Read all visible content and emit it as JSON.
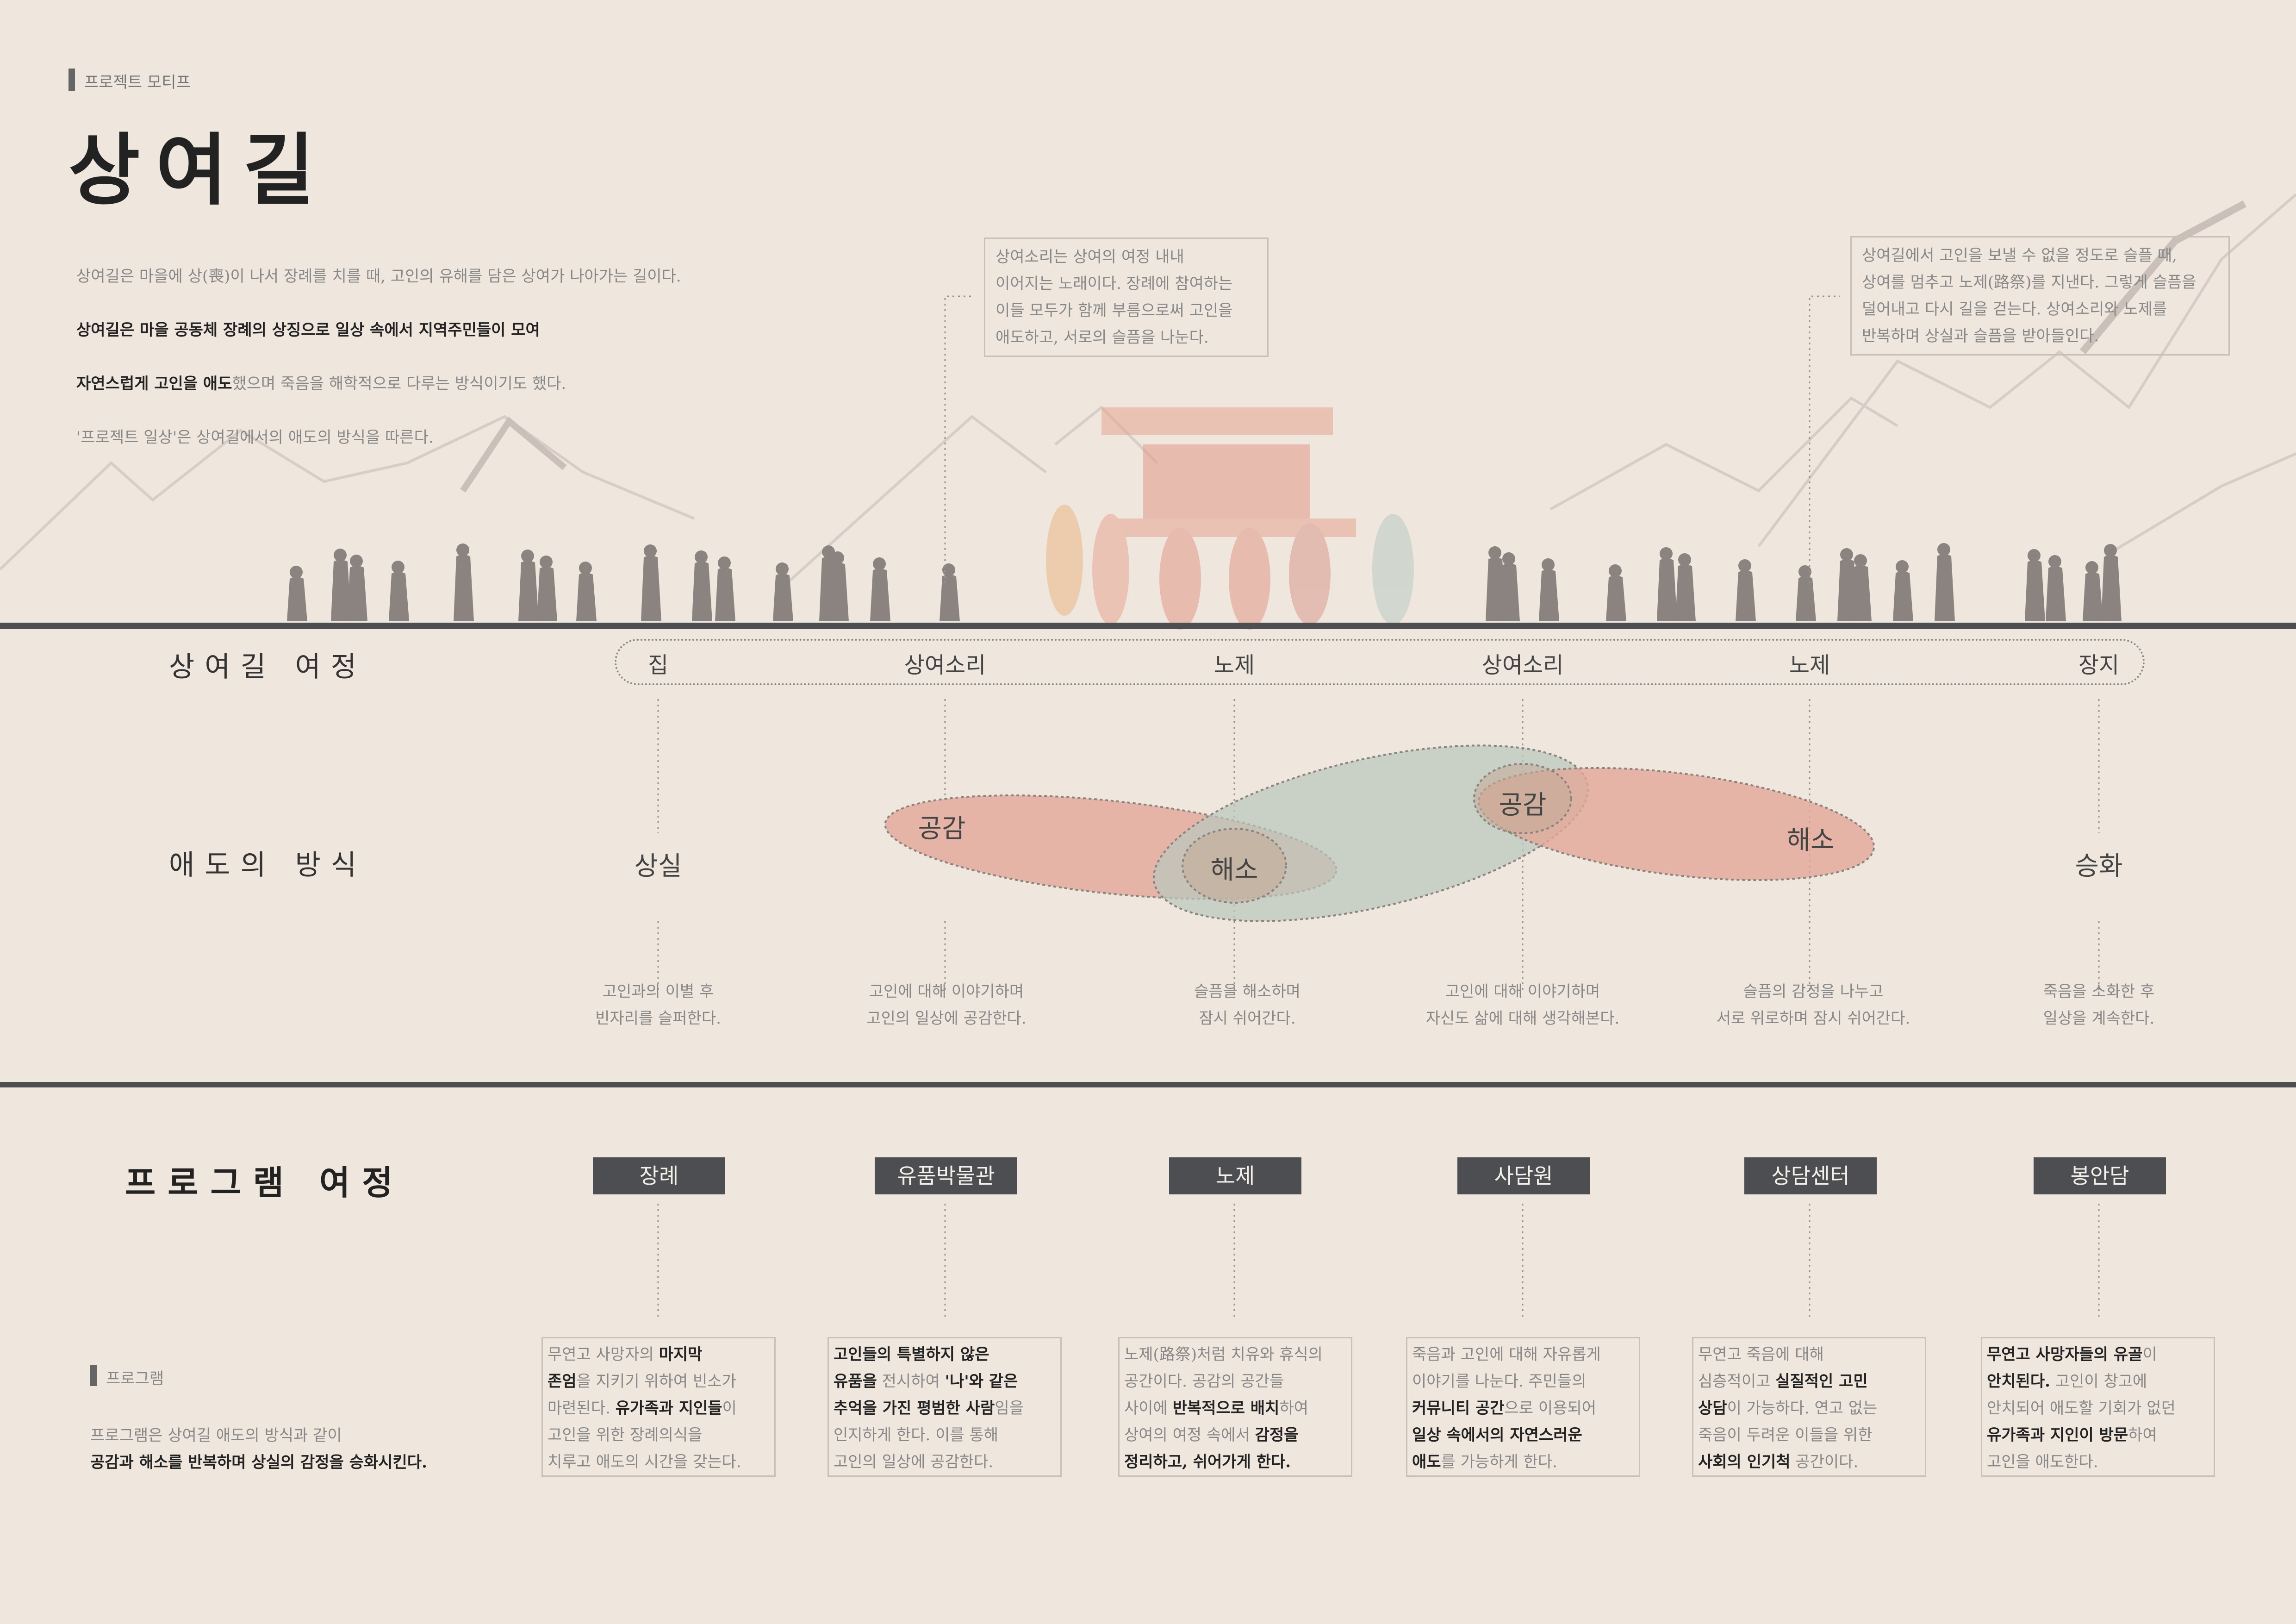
{
  "header": {
    "tag": "프로젝트 모티프",
    "title": "상여길",
    "intro": [
      {
        "text": "상여길은 마을에 상(喪)이 나서 장례를 치를 때, 고인의 유해를 담은 상여가 나아가는 길이다.",
        "bold": false
      },
      {
        "text": "상여길은 마을 공동체 장례의 상징으로 일상 속에서 지역주민들이 모여",
        "bold": true
      },
      {
        "text": "자연스럽게 고인을 애도했으며 죽음을 해학적으로 다루는 방식이기도 했다.",
        "bold": false,
        "bold_prefix": "자연스럽게 고인을 애도"
      },
      {
        "text": "'프로젝트 일상'은 상여길에서의 애도의 방식을 따른다.",
        "bold": false
      }
    ]
  },
  "notes": {
    "sangyeosori": "상여소리는 상여의 여정 내내\n이어지는 노래이다. 장례에 참여하는\n이들 모두가 함께 부름으로써 고인을\n애도하고, 서로의 슬픔을 나눈다.",
    "noje": "상여길에서 고인을 보낼 수 없을 정도로 슬플 때,\n상여를 멈추고 노제(路祭)를 지낸다. 그렇게 슬픔을\n덜어내고 다시 길을 걷는다. 상여소리와 노제를\n반복하며 상실과 슬픔을 받아들인다."
  },
  "rows": {
    "journey": "상여길 여정",
    "method": "애도의 방식",
    "program": "프로그램 여정"
  },
  "stops": [
    "집",
    "상여소리",
    "노제",
    "상여소리",
    "노제",
    "장지"
  ],
  "methods": {
    "loss": "상실",
    "empathy1": "공감",
    "relief1": "해소",
    "empathy2": "공감",
    "relief2": "해소",
    "sublimation": "승화"
  },
  "descriptions": [
    "고인과의 이별 후\n빈자리를 슬퍼한다.",
    "고인에 대해 이야기하며\n고인의 일상에 공감한다.",
    "슬픔을 해소하며\n잠시 쉬어간다.",
    "고인에 대해 이야기하며\n자신도 삶에 대해 생각해본다.",
    "슬픔의 감정을 나누고\n서로 위로하며 잠시 쉬어간다.",
    "죽음을 소화한 후\n일상을 계속한다."
  ],
  "programs": [
    "장례",
    "유품박물관",
    "노제",
    "사담원",
    "상담센터",
    "봉안담"
  ],
  "program_cards": [
    "무연고 사망자의 마지막\n존엄을 지키기 위하여 빈소가\n마련된다. 유가족과 지인들이\n고인을 위한 장례의식을\n치루고 애도의 시간을 갖는다.",
    "고인들의 특별하지 않은\n유품을 전시하여 '나'와 같은\n추억을 가진 평범한 사람임을\n인지하게 한다. 이를 통해\n고인의 일상에 공감한다.",
    "노제(路祭)처럼 치유와 휴식의\n공간이다. 공감의 공간들\n사이에 반복적으로 배치하여\n상여의 여정 속에서 감정을\n정리하고, 쉬어가게 한다.",
    "죽음과 고인에 대해 자유롭게\n이야기를 나눈다. 주민들의\n커뮤니티 공간으로 이용되어\n일상 속에서의 자연스러운\n애도를 가능하게 한다.",
    "무연고 죽음에 대해\n심층적이고 실질적인 고민\n상담이 가능하다. 연고 없는\n죽음이 두려운 이들을 위한\n사회의 인기척 공간이다.",
    "무연고 사망자들의 유골이\n안치된다. 고인이 창고에\n안치되어 애도할 기회가 없던\n유가족과 지인이 방문하여\n고인을 애도한다."
  ],
  "program_section": {
    "tag": "프로그램",
    "text_line1": "프로그램은 상여길 애도의 방식과 같이",
    "text_line2": "공감과 해소를 반복하며 상실의 감정을 승화시킨다."
  },
  "colors": {
    "background": "#efe6de",
    "empathy": "#e2a898",
    "relief": "#b9c8bd",
    "program_box": "#4d4e52",
    "rule": "#4d4e52"
  }
}
